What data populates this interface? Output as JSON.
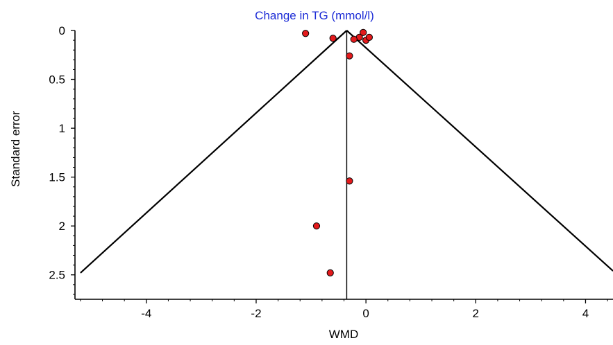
{
  "chart_data": {
    "type": "scatter",
    "subtype": "funnel",
    "title": "Change in TG (mmol/l)",
    "xlabel": "WMD",
    "ylabel": "Standard error",
    "xlim": [
      -5.3,
      4.5
    ],
    "ylim": [
      0,
      2.75
    ],
    "y_inverted": true,
    "x_ticks": [
      -4,
      -2,
      0,
      2,
      4
    ],
    "x_tick_labels": [
      "-4",
      "-2",
      "0",
      "2",
      "4"
    ],
    "y_ticks": [
      0,
      0.5,
      1,
      1.5,
      2,
      2.5
    ],
    "y_tick_labels": [
      "0",
      "0.5",
      "1",
      "1.5",
      "2",
      "2.5"
    ],
    "pooled_estimate": -0.35,
    "funnel_limits": {
      "left": [
        [
          -0.35,
          0.0
        ],
        [
          -5.2,
          2.48
        ]
      ],
      "right": [
        [
          -0.35,
          0.0
        ],
        [
          4.5,
          2.46
        ]
      ]
    },
    "points": [
      {
        "x": -1.1,
        "y": 0.03
      },
      {
        "x": -0.6,
        "y": 0.08
      },
      {
        "x": -0.05,
        "y": 0.02
      },
      {
        "x": -0.12,
        "y": 0.07
      },
      {
        "x": -0.22,
        "y": 0.09
      },
      {
        "x": 0.0,
        "y": 0.1
      },
      {
        "x": 0.06,
        "y": 0.07
      },
      {
        "x": -0.3,
        "y": 0.26
      },
      {
        "x": -0.3,
        "y": 1.54
      },
      {
        "x": -0.9,
        "y": 2.0
      },
      {
        "x": -0.65,
        "y": 2.48
      }
    ],
    "grid": false,
    "marker_color": "#e31a1c",
    "marker_edge_color": "#000000",
    "title_color": "#1c2cd6"
  }
}
